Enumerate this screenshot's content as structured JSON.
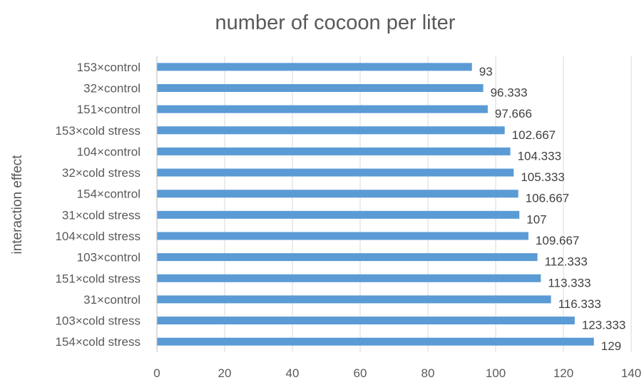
{
  "chart_data": {
    "type": "bar",
    "orientation": "horizontal",
    "title": "number of cocoon per liter",
    "xlabel": "",
    "ylabel": "interaction effect",
    "xlim": [
      0,
      140
    ],
    "xticks": [
      "0",
      "20",
      "40",
      "60",
      "80",
      "100",
      "120",
      "140"
    ],
    "grid": true,
    "legend": "none",
    "bar_color": "#5b9bd5",
    "categories": [
      "153×control",
      "32×control",
      "151×control",
      "153×cold stress",
      "104×control",
      "32×cold stress",
      "154×control",
      "31×cold stress",
      "104×cold stress",
      "103×control",
      "151×cold stress",
      "31×control",
      "103×cold stress",
      "154×cold stress"
    ],
    "values": [
      93,
      96.333,
      97.666,
      102.667,
      104.333,
      105.333,
      106.667,
      107,
      109.667,
      112.333,
      113.333,
      116.333,
      123.333,
      129
    ],
    "value_labels": [
      "93",
      "96.333",
      "97.666",
      "102.667",
      "104.333",
      "105.333",
      "106.667",
      "107",
      "109.667",
      "112.333",
      "113.333",
      "116.333",
      "123.333",
      "129"
    ]
  }
}
